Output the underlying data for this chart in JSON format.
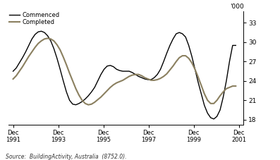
{
  "source_text": "Source:  BuildingActivity, Australia  (8752.0).",
  "ylabel_top": "'000",
  "yticks": [
    18,
    21,
    24,
    27,
    30,
    33
  ],
  "ylim": [
    17.2,
    34.8
  ],
  "xtick_labels": [
    "Dec\n1991",
    "Dec\n1993",
    "Dec\n1995",
    "Dec\n1997",
    "Dec\n1999",
    "Dec\n2001"
  ],
  "legend_commenced": "Commenced",
  "legend_completed": "Completed",
  "commenced_color": "#000000",
  "completed_color": "#8b8060",
  "commenced_lw": 1.0,
  "completed_lw": 1.5,
  "commenced": [
    25.5,
    26.0,
    26.8,
    27.6,
    28.5,
    29.5,
    30.5,
    31.2,
    31.6,
    31.7,
    31.5,
    31.0,
    30.2,
    29.0,
    27.5,
    25.8,
    24.0,
    22.3,
    21.0,
    20.4,
    20.3,
    20.5,
    20.8,
    21.2,
    21.7,
    22.3,
    23.0,
    24.0,
    25.0,
    25.8,
    26.3,
    26.4,
    26.2,
    25.8,
    25.6,
    25.5,
    25.5,
    25.5,
    25.3,
    25.0,
    24.7,
    24.5,
    24.3,
    24.2,
    24.2,
    24.5,
    25.0,
    25.8,
    27.0,
    28.3,
    29.5,
    30.5,
    31.3,
    31.5,
    31.3,
    30.8,
    29.5,
    27.8,
    25.8,
    23.8,
    22.0,
    20.2,
    19.0,
    18.3,
    18.1,
    18.5,
    19.5,
    21.5,
    24.0,
    27.0,
    29.5,
    29.5
  ],
  "completed": [
    24.3,
    24.8,
    25.5,
    26.2,
    27.0,
    27.8,
    28.5,
    29.2,
    29.8,
    30.2,
    30.5,
    30.6,
    30.5,
    30.2,
    29.6,
    28.8,
    27.7,
    26.5,
    25.2,
    24.0,
    22.8,
    21.8,
    21.0,
    20.5,
    20.3,
    20.4,
    20.7,
    21.1,
    21.5,
    22.0,
    22.5,
    23.0,
    23.4,
    23.7,
    23.9,
    24.1,
    24.4,
    24.7,
    24.9,
    25.0,
    25.0,
    24.8,
    24.5,
    24.3,
    24.1,
    24.1,
    24.2,
    24.4,
    24.7,
    25.1,
    25.7,
    26.3,
    27.0,
    27.6,
    27.9,
    27.9,
    27.5,
    26.8,
    25.8,
    24.6,
    23.3,
    22.0,
    21.0,
    20.5,
    20.5,
    21.0,
    21.7,
    22.3,
    22.8,
    23.0,
    23.2,
    23.2
  ]
}
